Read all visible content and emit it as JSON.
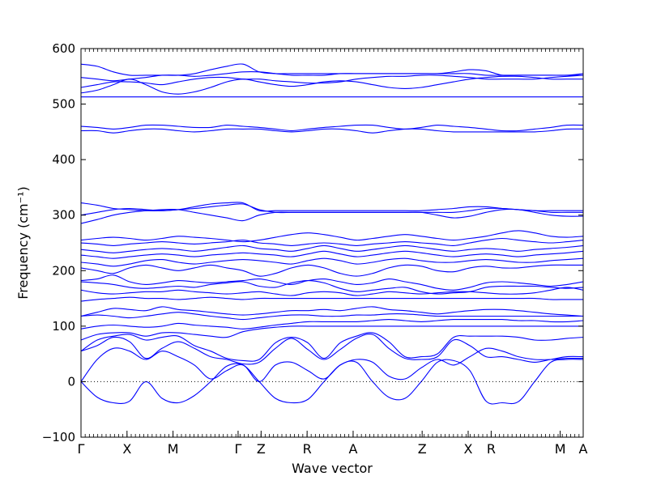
{
  "chart_data": {
    "type": "line",
    "title": "",
    "xlabel": "Wave vector",
    "ylabel": "Frequency (cm⁻¹)",
    "ylim": [
      -100,
      600
    ],
    "yticks": [
      -100,
      0,
      100,
      200,
      300,
      400,
      500,
      600
    ],
    "x_path_labels": [
      "Γ",
      "X",
      "M",
      "Γ",
      "Z",
      "R",
      "A",
      "Z",
      "X",
      "R",
      "M",
      "A"
    ],
    "x_path_positions": [
      0.0,
      1.0,
      2.0,
      3.414,
      3.914,
      4.914,
      5.914,
      7.414,
      8.414,
      8.914,
      10.414,
      10.914
    ],
    "zero_line": "dotted",
    "line_color": "#0000ff",
    "grid": false,
    "legend": "none",
    "series": [
      {
        "y": [
          0,
          -28,
          -38,
          -35,
          0,
          -30,
          -38,
          -25,
          0,
          28,
          30,
          0,
          -30,
          -38,
          -32,
          0,
          30,
          35,
          0,
          -28,
          -30,
          0,
          35,
          38,
          20,
          -35,
          -38,
          -36,
          0,
          35,
          40,
          40
        ]
      },
      {
        "y": [
          0,
          40,
          60,
          55,
          40,
          55,
          45,
          30,
          5,
          20,
          30,
          0,
          30,
          35,
          20,
          5,
          30,
          40,
          35,
          10,
          5,
          25,
          40,
          30,
          45,
          60,
          55,
          45,
          40,
          40,
          42,
          42
        ]
      },
      {
        "y": [
          55,
          65,
          80,
          72,
          42,
          60,
          72,
          60,
          45,
          40,
          32,
          35,
          60,
          78,
          58,
          40,
          58,
          78,
          85,
          60,
          42,
          40,
          45,
          75,
          65,
          45,
          45,
          40,
          35,
          40,
          45,
          45
        ]
      },
      {
        "y": [
          55,
          75,
          82,
          85,
          75,
          80,
          82,
          65,
          55,
          42,
          38,
          40,
          70,
          80,
          70,
          42,
          70,
          82,
          88,
          72,
          45,
          45,
          50,
          80,
          82,
          82,
          82,
          80,
          75,
          75,
          78,
          80
        ]
      },
      {
        "y": [
          75,
          85,
          88,
          88,
          82,
          88,
          88,
          85,
          82,
          80,
          90,
          95,
          98,
          100,
          100,
          100,
          100,
          100,
          100,
          100,
          100,
          100,
          100,
          100,
          100,
          100,
          100,
          100,
          100,
          100,
          100,
          100
        ]
      },
      {
        "y": [
          95,
          100,
          102,
          100,
          98,
          100,
          105,
          102,
          100,
          98,
          95,
          98,
          102,
          105,
          108,
          108,
          108,
          108,
          110,
          112,
          110,
          108,
          110,
          112,
          112,
          112,
          112,
          110,
          110,
          108,
          108,
          110
        ]
      },
      {
        "y": [
          118,
          120,
          118,
          115,
          118,
          122,
          125,
          122,
          118,
          115,
          112,
          115,
          118,
          120,
          120,
          118,
          118,
          120,
          120,
          122,
          122,
          120,
          118,
          118,
          118,
          118,
          118,
          118,
          118,
          118,
          118,
          118
        ]
      },
      {
        "y": [
          118,
          125,
          132,
          130,
          128,
          135,
          130,
          128,
          125,
          122,
          120,
          122,
          125,
          128,
          128,
          130,
          128,
          132,
          135,
          130,
          128,
          125,
          122,
          125,
          128,
          130,
          130,
          128,
          125,
          122,
          120,
          118
        ]
      },
      {
        "y": [
          145,
          148,
          150,
          152,
          150,
          150,
          148,
          150,
          152,
          150,
          148,
          150,
          150,
          150,
          150,
          150,
          150,
          150,
          150,
          150,
          150,
          150,
          150,
          150,
          150,
          150,
          150,
          150,
          150,
          148,
          148,
          148
        ]
      },
      {
        "y": [
          165,
          160,
          158,
          160,
          162,
          162,
          165,
          162,
          160,
          158,
          160,
          162,
          158,
          155,
          160,
          162,
          160,
          155,
          158,
          162,
          160,
          158,
          160,
          162,
          162,
          160,
          158,
          158,
          160,
          165,
          170,
          165
        ]
      },
      {
        "y": [
          180,
          178,
          175,
          170,
          168,
          170,
          172,
          170,
          175,
          178,
          180,
          172,
          170,
          178,
          182,
          178,
          168,
          162,
          165,
          168,
          170,
          162,
          158,
          160,
          162,
          170,
          172,
          172,
          172,
          170,
          168,
          170
        ]
      },
      {
        "y": [
          182,
          185,
          192,
          180,
          175,
          178,
          182,
          180,
          178,
          180,
          182,
          185,
          180,
          175,
          182,
          185,
          180,
          175,
          178,
          185,
          180,
          175,
          168,
          165,
          170,
          178,
          180,
          178,
          175,
          172,
          175,
          180
        ]
      },
      {
        "y": [
          205,
          200,
          195,
          205,
          210,
          205,
          200,
          205,
          210,
          205,
          200,
          190,
          195,
          205,
          210,
          205,
          195,
          190,
          195,
          205,
          210,
          208,
          200,
          198,
          205,
          208,
          205,
          205,
          208,
          210,
          210,
          210
        ]
      },
      {
        "y": [
          215,
          212,
          208,
          212,
          218,
          220,
          215,
          212,
          215,
          218,
          220,
          218,
          215,
          212,
          218,
          222,
          218,
          212,
          215,
          220,
          222,
          218,
          215,
          215,
          218,
          220,
          218,
          215,
          215,
          218,
          220,
          222
        ]
      },
      {
        "y": [
          228,
          225,
          222,
          225,
          228,
          230,
          228,
          225,
          228,
          230,
          232,
          230,
          228,
          225,
          230,
          235,
          230,
          225,
          228,
          232,
          235,
          232,
          228,
          225,
          228,
          230,
          228,
          225,
          228,
          230,
          232,
          235
        ]
      },
      {
        "y": [
          238,
          235,
          232,
          235,
          238,
          240,
          238,
          235,
          238,
          242,
          245,
          240,
          238,
          235,
          240,
          245,
          240,
          235,
          238,
          242,
          245,
          242,
          238,
          235,
          238,
          240,
          238,
          235,
          238,
          240,
          242,
          245
        ]
      },
      {
        "y": [
          250,
          248,
          245,
          248,
          250,
          252,
          250,
          248,
          250,
          252,
          255,
          250,
          248,
          245,
          248,
          250,
          248,
          245,
          248,
          250,
          252,
          250,
          248,
          245,
          250,
          255,
          258,
          255,
          252,
          250,
          252,
          255
        ]
      },
      {
        "y": [
          255,
          258,
          260,
          258,
          255,
          258,
          262,
          260,
          258,
          255,
          252,
          255,
          260,
          265,
          268,
          265,
          260,
          255,
          258,
          262,
          265,
          262,
          258,
          255,
          258,
          262,
          268,
          272,
          268,
          262,
          260,
          262
        ]
      },
      {
        "y": [
          285,
          292,
          300,
          305,
          308,
          310,
          310,
          305,
          300,
          295,
          290,
          300,
          305,
          305,
          305,
          305,
          305,
          305,
          305,
          305,
          305,
          305,
          300,
          295,
          298,
          305,
          310,
          310,
          305,
          300,
          298,
          298
        ]
      },
      {
        "y": [
          300,
          305,
          310,
          312,
          310,
          308,
          310,
          312,
          315,
          318,
          320,
          310,
          305,
          305,
          305,
          305,
          305,
          305,
          305,
          305,
          305,
          305,
          305,
          305,
          308,
          312,
          312,
          310,
          308,
          305,
          305,
          305
        ]
      },
      {
        "y": [
          322,
          318,
          312,
          310,
          308,
          308,
          310,
          315,
          320,
          322,
          322,
          308,
          308,
          308,
          308,
          308,
          308,
          308,
          308,
          308,
          308,
          308,
          310,
          312,
          315,
          315,
          312,
          310,
          308,
          308,
          308,
          308
        ]
      },
      {
        "y": [
          452,
          452,
          448,
          452,
          455,
          455,
          452,
          450,
          452,
          455,
          455,
          455,
          452,
          450,
          452,
          455,
          455,
          452,
          448,
          452,
          455,
          455,
          452,
          450,
          450,
          450,
          450,
          450,
          450,
          452,
          455,
          455
        ]
      },
      {
        "y": [
          460,
          458,
          455,
          458,
          462,
          462,
          460,
          458,
          458,
          462,
          460,
          458,
          455,
          452,
          455,
          458,
          460,
          462,
          462,
          458,
          455,
          458,
          462,
          460,
          458,
          455,
          452,
          452,
          455,
          458,
          462,
          462
        ]
      },
      {
        "y": [
          513,
          513,
          513,
          513,
          513,
          513,
          513,
          513,
          513,
          513,
          513,
          513,
          513,
          513,
          513,
          513,
          513,
          513,
          513,
          513,
          513,
          513,
          513,
          513,
          513,
          513,
          513,
          513,
          513,
          513,
          513,
          513
        ]
      },
      {
        "y": [
          520,
          525,
          535,
          545,
          535,
          522,
          518,
          522,
          530,
          540,
          545,
          540,
          535,
          532,
          535,
          540,
          542,
          540,
          535,
          530,
          528,
          530,
          535,
          540,
          545,
          548,
          550,
          550,
          548,
          545,
          545,
          545
        ]
      },
      {
        "y": [
          530,
          535,
          540,
          540,
          538,
          535,
          540,
          545,
          548,
          548,
          545,
          545,
          542,
          540,
          538,
          538,
          540,
          545,
          548,
          550,
          550,
          552,
          552,
          550,
          548,
          545,
          545,
          545,
          545,
          548,
          550,
          552
        ]
      },
      {
        "y": [
          548,
          545,
          542,
          545,
          548,
          552,
          552,
          550,
          552,
          555,
          558,
          558,
          555,
          552,
          552,
          552,
          555,
          555,
          555,
          555,
          555,
          555,
          555,
          555,
          555,
          552,
          552,
          552,
          552,
          552,
          552,
          552
        ]
      },
      {
        "y": [
          572,
          568,
          558,
          552,
          552,
          552,
          552,
          555,
          562,
          568,
          572,
          558,
          555,
          555,
          555,
          555,
          555,
          555,
          555,
          555,
          555,
          555,
          555,
          558,
          562,
          560,
          552,
          552,
          552,
          552,
          552,
          555
        ]
      }
    ]
  }
}
